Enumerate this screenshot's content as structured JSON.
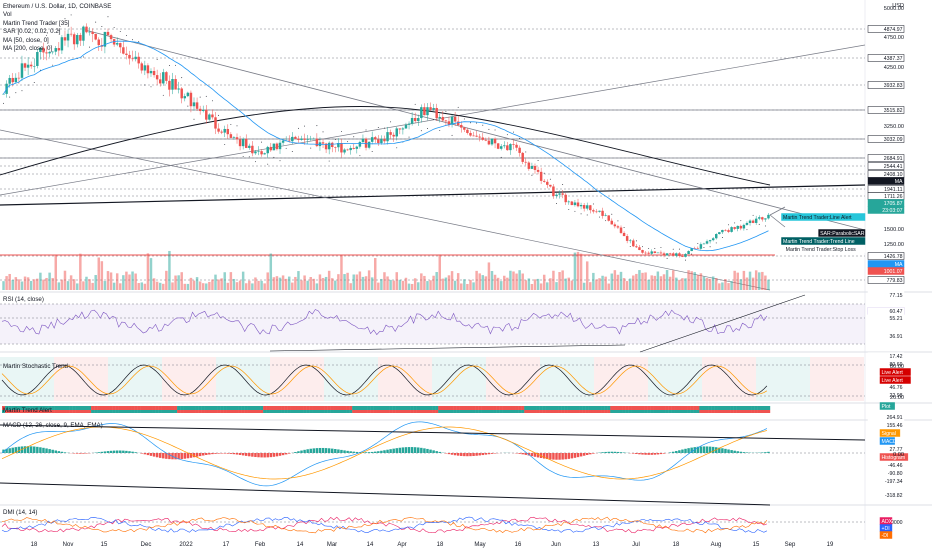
{
  "legend": {
    "title": "Ethereum / U.S. Dollar, 1D, COINBASE",
    "items": [
      "Vol",
      "Martin Trend Trader [35]",
      "SAR [0.02, 0.02, 0.2]",
      "MA [50, close, 0]",
      "MA [200, close, 0]"
    ]
  },
  "currency": "USD",
  "panes": {
    "rsi": "RSI (14, close)",
    "stoch": "Martin Stochastic Trend",
    "trend_alert": "Martin Trend Alert",
    "macd": "MACD (12, 26, close, 9, EMA, EMA)",
    "dmi": "DMI (14, 14)"
  },
  "price_ticks": [
    "5000.00",
    "4750.00",
    "4250.00",
    "3250.00",
    "2500.00",
    "1500.00",
    "1250.00"
  ],
  "price_tags": [
    {
      "text": "4874.97",
      "bg": "#ffffff",
      "fg": "#131722",
      "border": "#131722",
      "y": 29
    },
    {
      "text": "4387.37",
      "bg": "#ffffff",
      "fg": "#131722",
      "border": "#131722",
      "y": 58
    },
    {
      "text": "3932.83",
      "bg": "#ffffff",
      "fg": "#131722",
      "border": "#131722",
      "y": 85
    },
    {
      "text": "3515.82",
      "bg": "#ffffff",
      "fg": "#131722",
      "border": "#131722",
      "y": 110
    },
    {
      "text": "3032.09",
      "bg": "#ffffff",
      "fg": "#131722",
      "border": "#131722",
      "y": 139
    },
    {
      "text": "2684.91",
      "bg": "#ffffff",
      "fg": "#131722",
      "border": "#131722",
      "y": 158
    },
    {
      "text": "2544.41",
      "bg": "#ffffff",
      "fg": "#131722",
      "border": "#131722",
      "y": 166
    },
    {
      "text": "2408.10",
      "bg": "#ffffff",
      "fg": "#131722",
      "border": "#131722",
      "y": 174
    },
    {
      "text": "MA",
      "bg": "#131722",
      "fg": "#ffffff",
      "border": "#131722",
      "y": 181
    },
    {
      "text": "1941.11",
      "bg": "#ffffff",
      "fg": "#131722",
      "border": "#131722",
      "y": 189
    },
    {
      "text": "1711.26",
      "bg": "#ffffff",
      "fg": "#131722",
      "border": "#131722",
      "y": 196
    },
    {
      "text": "1705.87",
      "bg": "#26a69a",
      "fg": "#ffffff",
      "border": "#26a69a",
      "y": 203
    },
    {
      "text": "23:03:07",
      "bg": "#26a69a",
      "fg": "#ffffff",
      "border": "#26a69a",
      "y": 210
    },
    {
      "text": "1426.78",
      "bg": "#ffffff",
      "fg": "#131722",
      "border": "#131722",
      "y": 256
    },
    {
      "text": "MA",
      "bg": "#2196f3",
      "fg": "#ffffff",
      "border": "#2196f3",
      "y": 264
    },
    {
      "text": "1001.07",
      "bg": "#ef5350",
      "fg": "#ffffff",
      "border": "#ef5350",
      "y": 271
    },
    {
      "text": "779.83",
      "bg": "#ffffff",
      "fg": "#131722",
      "border": "#131722",
      "y": 280
    }
  ],
  "indicator_tags": [
    {
      "text": "77.15",
      "bg": "#ffffff",
      "fg": "#131722",
      "y": 295
    },
    {
      "text": "RSI",
      "bg": "#7e57c2",
      "fg": "#ffffff",
      "y": 311
    },
    {
      "text": "60.47",
      "bg": "#ffffff",
      "fg": "#131722",
      "y": 311
    },
    {
      "text": "55.21",
      "bg": "#ffffff",
      "fg": "#131722",
      "y": 318
    },
    {
      "text": "36.91",
      "bg": "#ffffff",
      "fg": "#131722",
      "y": 336
    },
    {
      "text": "17.42",
      "bg": "#ffffff",
      "fg": "#131722",
      "y": 356
    },
    {
      "text": "80.69",
      "bg": "#ffffff",
      "fg": "#131722",
      "y": 364
    },
    {
      "text": "46.76",
      "bg": "#ffffff",
      "fg": "#131722",
      "y": 387
    },
    {
      "text": "22.98",
      "bg": "#ffffff",
      "fg": "#131722",
      "y": 395
    },
    {
      "text": "264.91",
      "bg": "#ffffff",
      "fg": "#131722",
      "y": 417
    },
    {
      "text": "155.46",
      "bg": "#ffffff",
      "fg": "#131722",
      "y": 425
    },
    {
      "text": "27.77",
      "bg": "#ffffff",
      "fg": "#131722",
      "y": 449
    },
    {
      "text": "-46.46",
      "bg": "#ffffff",
      "fg": "#131722",
      "y": 465
    },
    {
      "text": "-90.80",
      "bg": "#ffffff",
      "fg": "#131722",
      "y": 473
    },
    {
      "text": "-197.34",
      "bg": "#ffffff",
      "fg": "#131722",
      "y": 481
    },
    {
      "text": "-318.82",
      "bg": "#ffffff",
      "fg": "#131722",
      "y": 495
    },
    {
      "text": "25.0000",
      "bg": "#ffffff",
      "fg": "#131722",
      "y": 522
    }
  ],
  "chart_tags": [
    {
      "text": "Martin Trend Trader:Line Alert",
      "bg": "#26c6da",
      "fg": "#131722",
      "y": 217
    },
    {
      "text": "SAR:ParabolicSAR",
      "bg": "#131722",
      "fg": "#ffffff",
      "y": 233
    },
    {
      "text": "Martin Trend Trader:Trend Line",
      "bg": "#006064",
      "fg": "#ffffff",
      "y": 241
    },
    {
      "text": "Martin Trend Trader:Stop Loss",
      "bg": "#ffffff",
      "fg": "#131722",
      "y": 249
    },
    {
      "text": "Live Alert",
      "bg": "#d50000",
      "fg": "#ffffff",
      "y": 372
    },
    {
      "text": "Live Alert",
      "bg": "#d50000",
      "fg": "#ffffff",
      "y": 380
    },
    {
      "text": "Plot",
      "bg": "#26a69a",
      "fg": "#ffffff",
      "y": 406
    },
    {
      "text": "Signal",
      "bg": "#ff9800",
      "fg": "#ffffff",
      "y": 433
    },
    {
      "text": "MACD",
      "bg": "#2196f3",
      "fg": "#ffffff",
      "y": 441
    },
    {
      "text": "Histogram",
      "bg": "#ef5350",
      "fg": "#ffffff",
      "y": 457
    },
    {
      "text": "ADX",
      "bg": "#e91e63",
      "fg": "#ffffff",
      "y": 521
    },
    {
      "text": "+DI",
      "bg": "#2962ff",
      "fg": "#ffffff",
      "y": 528
    },
    {
      "text": "-DI",
      "bg": "#ff6d00",
      "fg": "#ffffff",
      "y": 535
    }
  ],
  "stoch_ticks": [
    "80.00",
    "20.00"
  ],
  "macd_ticks": [
    "0.00"
  ],
  "x_labels": [
    "18",
    "Nov",
    "15",
    "Dec",
    "2022",
    "17",
    "Feb",
    "14",
    "Mar",
    "14",
    "Apr",
    "18",
    "May",
    "16",
    "Jun",
    "13",
    "Jul",
    "18",
    "Aug",
    "15",
    "Sep",
    "19"
  ],
  "colors": {
    "up": "#26a69a",
    "down": "#ef5350",
    "ma50": "#2196f3",
    "ma200": "#131722",
    "rsi": "#7e57c2",
    "macd": "#2196f3",
    "signal": "#ff9800"
  },
  "chart_data": {
    "type": "candlestick",
    "symbol": "Ethereum / U.S. Dollar",
    "interval": "1D",
    "exchange": "COINBASE",
    "ylim": [
      700,
      5000
    ],
    "price_path": [
      [
        "18",
        3800
      ],
      [
        "Nov",
        4400
      ],
      [
        "15",
        4700
      ],
      [
        "Dec",
        4300
      ],
      [
        "2022",
        3800
      ],
      [
        "17",
        3200
      ],
      [
        "Feb",
        2700
      ],
      [
        "14",
        3000
      ],
      [
        "Mar",
        2800
      ],
      [
        "14",
        3000
      ],
      [
        "Apr",
        3450
      ],
      [
        "18",
        3050
      ],
      [
        "May",
        2800
      ],
      [
        "16",
        2050
      ],
      [
        "Jun",
        1800
      ],
      [
        "13",
        1150
      ],
      [
        "Jul",
        1100
      ],
      [
        "18",
        1500
      ],
      [
        "Aug",
        1705.87
      ]
    ],
    "last_price": 1705.87,
    "rsi_last": 60.47,
    "stoch_levels": [
      80,
      20
    ],
    "dmi_level": 25
  }
}
